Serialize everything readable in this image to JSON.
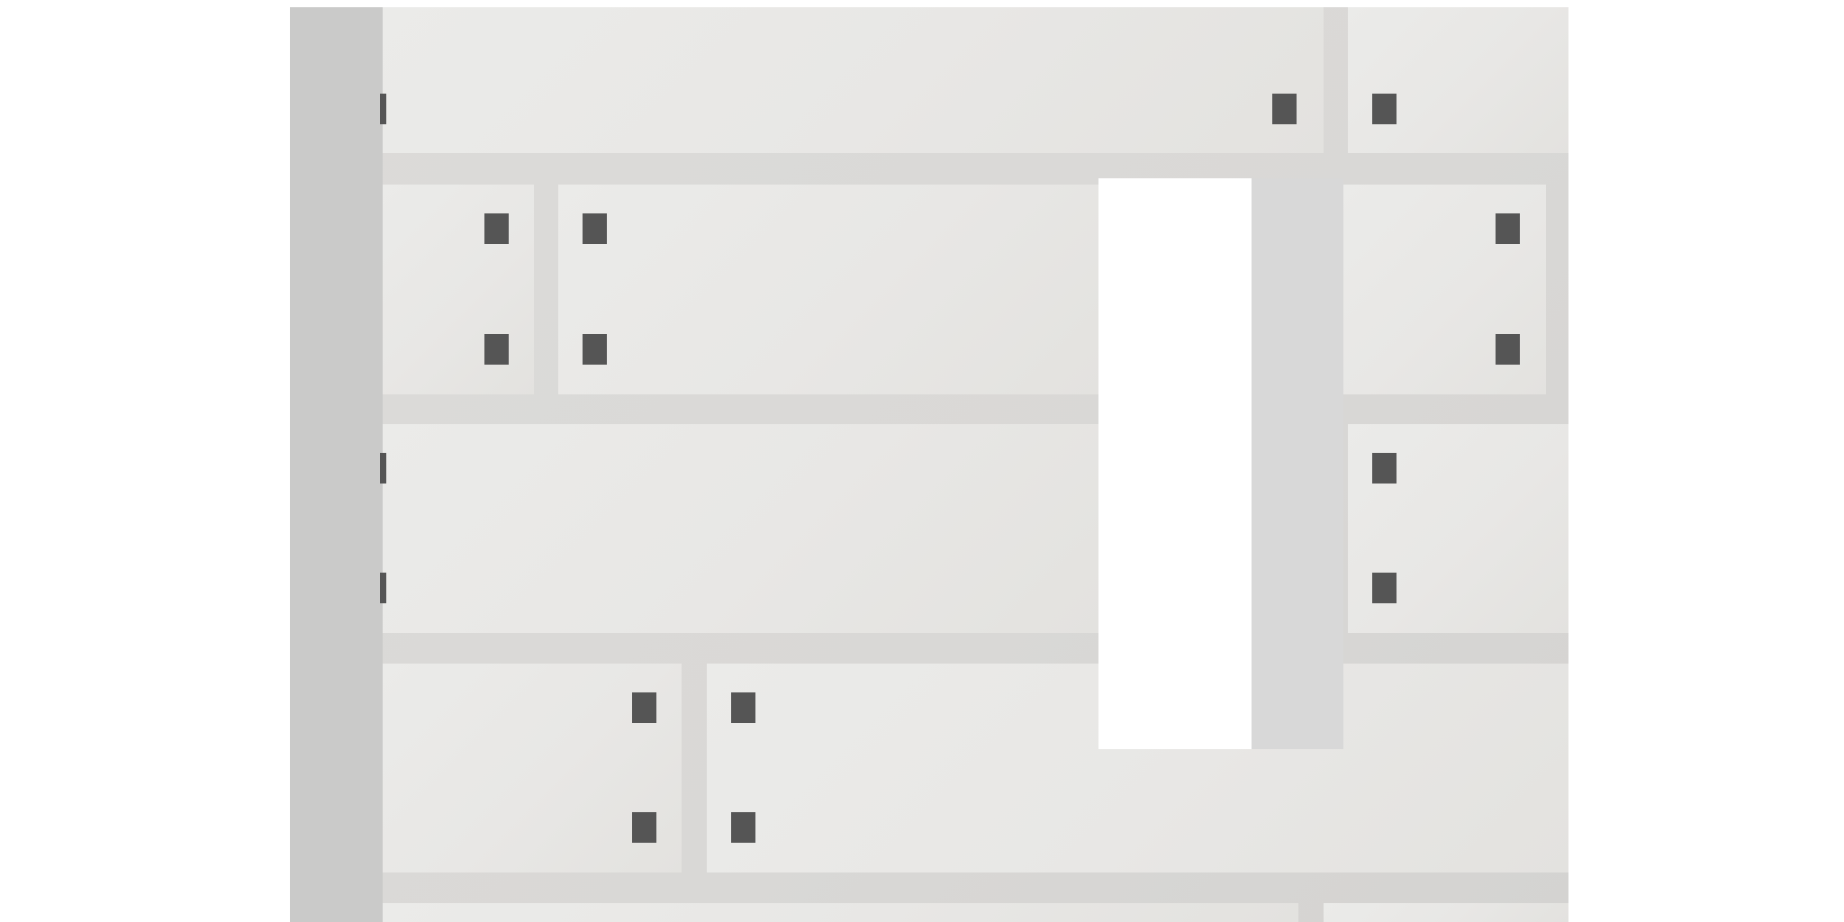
{
  "scene": {
    "colors": {
      "background": "#ffffff",
      "wall": "#d9d8d6",
      "panel": "#e8e7e5",
      "side_post": "#cacac9",
      "bolt": "#555555",
      "chute": "#d8d8d8",
      "slot": "#ffffff"
    }
  }
}
